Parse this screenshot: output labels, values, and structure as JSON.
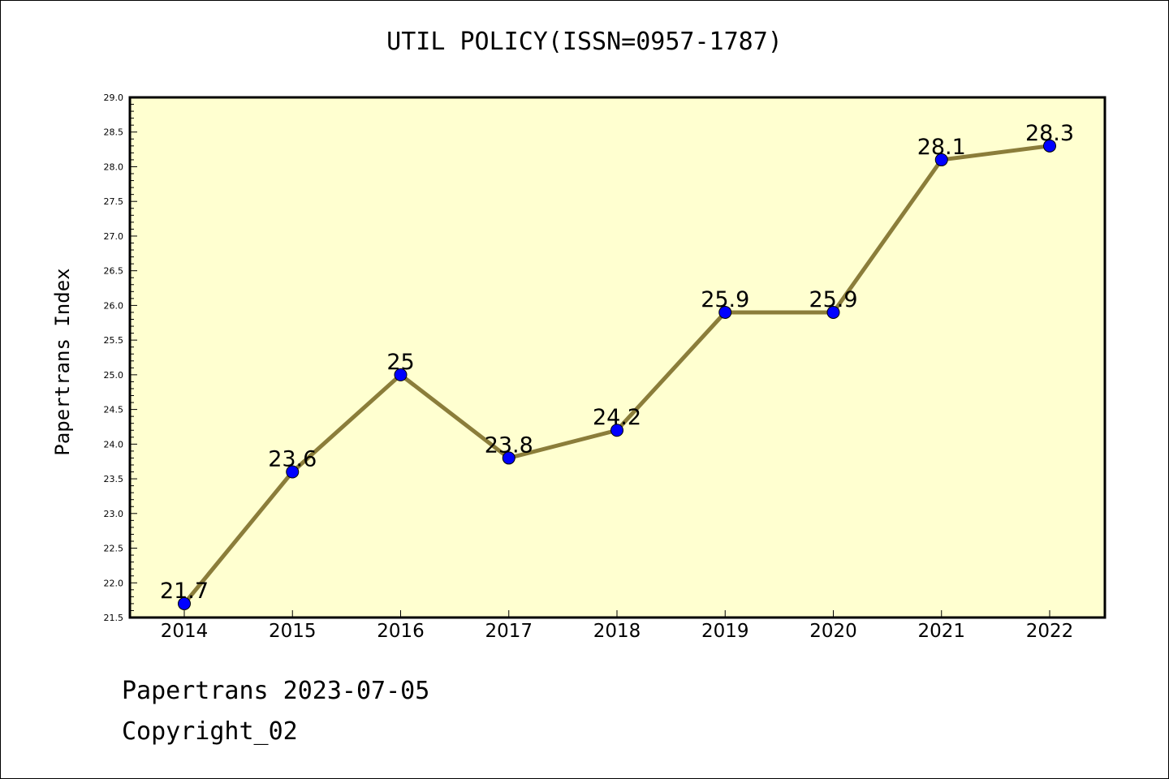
{
  "chart_data": {
    "type": "line",
    "title": "UTIL POLICY(ISSN=0957-1787)",
    "xlabel": "",
    "ylabel": "Papertrans Index",
    "categories": [
      "2014",
      "2015",
      "2016",
      "2017",
      "2018",
      "2019",
      "2020",
      "2021",
      "2022"
    ],
    "series": [
      {
        "values": [
          21.7,
          23.6,
          25,
          23.8,
          24.2,
          25.9,
          25.9,
          28.1,
          28.3
        ],
        "data_labels": [
          "21.7",
          "23.6",
          "25",
          "23.8",
          "24.2",
          "25.9",
          "25.9",
          "28.1",
          "28.3"
        ]
      }
    ],
    "ylim": [
      21.5,
      29.0
    ],
    "y_ticks": [
      "21.5",
      "22.0",
      "22.5",
      "23.0",
      "23.5",
      "24.0",
      "24.5",
      "25.0",
      "25.5",
      "26.0",
      "26.5",
      "27.0",
      "27.5",
      "28.0",
      "28.5",
      "29.0"
    ],
    "grid": false,
    "legend": "none",
    "colors": {
      "plot_background": "#ffffd0",
      "line": "#8b7d3a",
      "marker": "#0000ff"
    }
  },
  "footer": {
    "line1": "Papertrans 2023-07-05",
    "line2": "Copyright_02"
  }
}
